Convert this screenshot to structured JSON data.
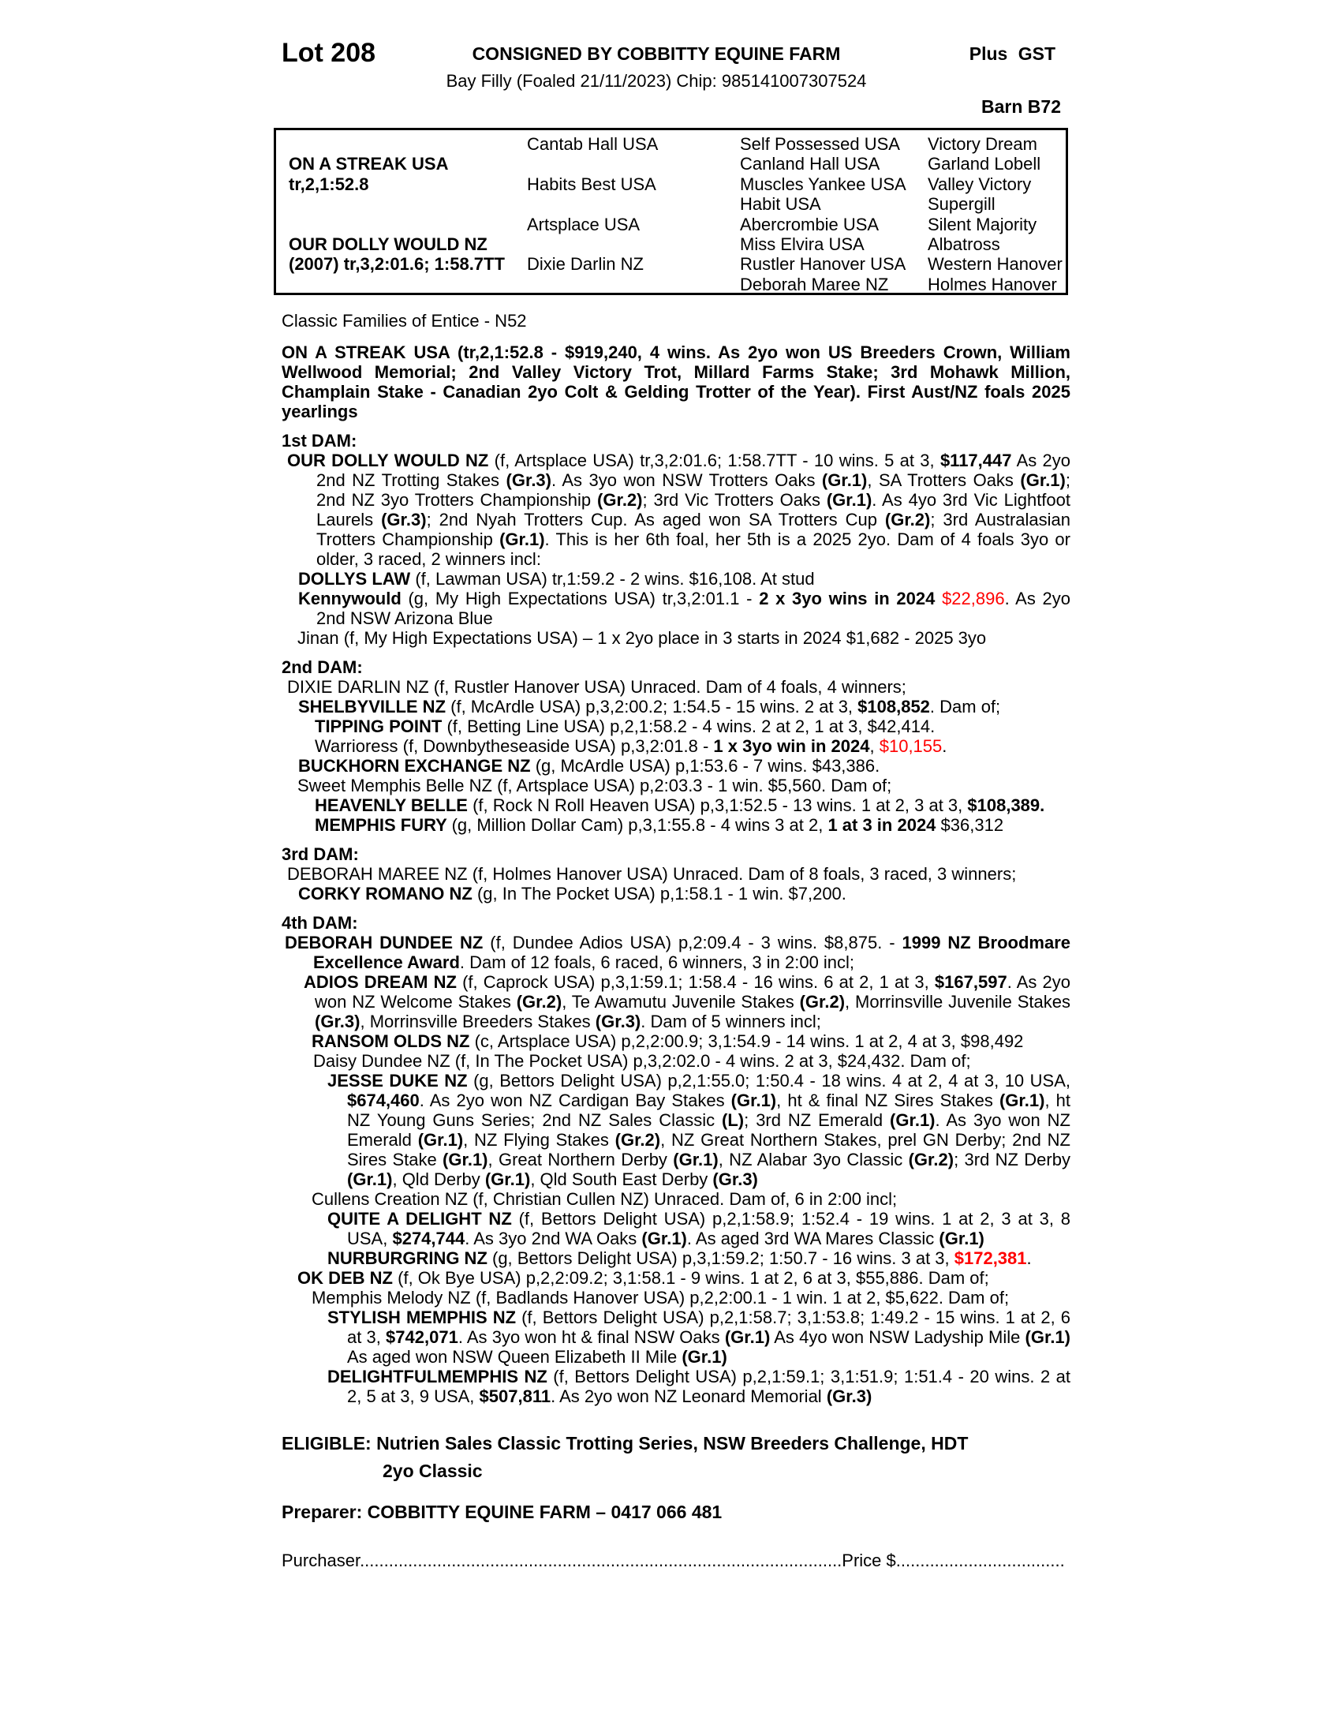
{
  "colors": {
    "accent_red": "#ff0000",
    "text": "#000000",
    "paper": "#ffffff"
  },
  "header": {
    "lot": "Lot 208",
    "consignor": "CONSIGNED BY COBBITTY EQUINE FARM",
    "gst": "Plus GST",
    "description": "Bay Filly (Foaled 21/11/2023) Chip: 985141007307524",
    "barn": "Barn B72"
  },
  "pedigree": {
    "sire": {
      "name": "ON A STREAK USA",
      "record": "tr,2,1:52.8"
    },
    "dam": {
      "name": "OUR DOLLY WOULD NZ",
      "record": "(2007) tr,3,2:01.6; 1:58.7TT"
    },
    "gen2": [
      "Cantab Hall USA",
      "Habits Best USA",
      "Artsplace USA",
      "Dixie Darlin NZ"
    ],
    "gen3": [
      "Self Possessed USA",
      "Canland Hall USA",
      "Muscles Yankee USA",
      "Habit USA",
      "Abercrombie USA",
      "Miss Elvira USA",
      "Rustler Hanover USA",
      "Deborah Maree NZ"
    ],
    "gen4": [
      "Victory Dream",
      "Garland Lobell",
      "Valley Victory",
      "Supergill",
      "Silent Majority",
      "Albatross",
      "Western Hanover",
      "Holmes Hanover"
    ]
  },
  "blocks": [
    {
      "n": "family-line",
      "runs": [
        {
          "t": "Classic Families of Entice - N52"
        }
      ]
    },
    {
      "n": "sire-summary",
      "cls": "mt15 j",
      "runs": [
        {
          "t": "ON A STREAK USA (tr,2,1:52.8 - $919,240, 4 wins. As 2yo won US Breeders Crown, William Wellwood Memorial; 2nd Valley Victory Trot, Millard Farms Stake; 3rd Mohawk Million, Champlain Stake - Canadian 2yo Colt & Gelding Trotter of the Year). First Aust/NZ foals 2025 yearlings",
          "b": true
        }
      ]
    },
    {
      "n": "heading-1st-dam",
      "cls": "sec",
      "runs": [
        {
          "t": "1st DAM:",
          "b": true
        }
      ]
    },
    {
      "n": "para-our-dolly-would",
      "cls": "j",
      "ind": 7,
      "cont": 44,
      "runs": [
        {
          "t": "OUR DOLLY WOULD NZ ",
          "b": true
        },
        {
          "t": "(f, Artsplace USA) tr,3,2:01.6; 1:58.7TT - 10 wins. 5 at 3, "
        },
        {
          "t": "$117,447",
          "b": true
        },
        {
          "t": " As 2yo 2nd NZ Trotting Stakes "
        },
        {
          "t": "(Gr.3)",
          "b": true
        },
        {
          "t": ". As 3yo won NSW Trotters Oaks "
        },
        {
          "t": "(Gr.1)",
          "b": true
        },
        {
          "t": ", SA Trotters Oaks "
        },
        {
          "t": "(Gr.1)",
          "b": true
        },
        {
          "t": "; 2nd NZ 3yo Trotters Championship "
        },
        {
          "t": "(Gr.2)",
          "b": true
        },
        {
          "t": "; 3rd Vic Trotters Oaks "
        },
        {
          "t": "(Gr.1)",
          "b": true
        },
        {
          "t": ". As 4yo 3rd Vic Lightfoot Laurels "
        },
        {
          "t": "(Gr.3)",
          "b": true
        },
        {
          "t": "; 2nd Nyah Trotters Cup. As aged won SA Trotters Cup "
        },
        {
          "t": "(Gr.2)",
          "b": true
        },
        {
          "t": "; 3rd Australasian Trotters Championship "
        },
        {
          "t": "(Gr.1)",
          "b": true
        },
        {
          "t": ". This is her 6th foal, her 5th is a 2025 2yo. Dam of 4 foals 3yo or older, 3 raced, 2 winners incl:"
        }
      ]
    },
    {
      "n": "para-dollys-law",
      "ind": 21,
      "cont": 44,
      "runs": [
        {
          "t": "DOLLYS LAW ",
          "b": true
        },
        {
          "t": "(f, Lawman USA) tr,1:59.2 - 2 wins. $16,108. At stud"
        }
      ]
    },
    {
      "n": "para-kennywould",
      "cls": "j",
      "ind": 21,
      "cont": 44,
      "runs": [
        {
          "t": "Kennywould ",
          "b": true
        },
        {
          "t": "(g, My High Expectations USA) tr,3,2:01.1 - "
        },
        {
          "t": "2 x 3yo wins in 2024 ",
          "b": true
        },
        {
          "t": "$22,896",
          "r": true
        },
        {
          "t": ". As 2yo 2nd NSW Arizona Blue"
        }
      ]
    },
    {
      "n": "para-jinan",
      "ind": 20,
      "cont": 44,
      "runs": [
        {
          "t": "Jinan (f, My High Expectations USA) – 1 x 2yo place in 3 starts in 2024 $1,682 - 2025 3yo"
        }
      ]
    },
    {
      "n": "heading-2nd-dam",
      "cls": "sec",
      "runs": [
        {
          "t": "2nd DAM:",
          "b": true
        }
      ]
    },
    {
      "n": "para-dixie-darlin",
      "ind": 7,
      "cont": 44,
      "runs": [
        {
          "t": "DIXIE DARLIN NZ (f, Rustler Hanover USA) Unraced. Dam of 4 foals, 4 winners;"
        }
      ]
    },
    {
      "n": "para-shelbyville",
      "ind": 21,
      "cont": 44,
      "runs": [
        {
          "t": "SHELBYVILLE NZ ",
          "b": true
        },
        {
          "t": "(f, McArdle USA) p,3,2:00.2; 1:54.5 - 15 wins. 2 at 3, "
        },
        {
          "t": "$108,852",
          "b": true
        },
        {
          "t": ". Dam of;"
        }
      ]
    },
    {
      "n": "para-tipping-point",
      "ind": 42,
      "cont": 60,
      "runs": [
        {
          "t": "TIPPING POINT ",
          "b": true
        },
        {
          "t": "(f, Betting Line USA) p,2,1:58.2 - 4 wins. 2 at 2, 1 at 3, $42,414."
        }
      ]
    },
    {
      "n": "para-warrioress",
      "ind": 42,
      "cont": 60,
      "runs": [
        {
          "t": "Warrioress (f, Downbytheseaside USA) p,3,2:01.8 - "
        },
        {
          "t": "1 x 3yo win in 2024",
          "b": true
        },
        {
          "t": ", "
        },
        {
          "t": "$10,155",
          "r": true
        },
        {
          "t": "."
        }
      ]
    },
    {
      "n": "para-buckhorn-exchange",
      "ind": 21,
      "cont": 44,
      "runs": [
        {
          "t": "BUCKHORN EXCHANGE NZ ",
          "b": true
        },
        {
          "t": "(g, McArdle USA) p,1:53.6 - 7 wins. $43,386."
        }
      ]
    },
    {
      "n": "para-sweet-memphis-belle",
      "ind": 20,
      "cont": 44,
      "runs": [
        {
          "t": "Sweet Memphis Belle NZ (f, Artsplace USA) p,2:03.3 - 1 win. $5,560. Dam of;"
        }
      ]
    },
    {
      "n": "para-heavenly-belle",
      "ind": 42,
      "cont": 60,
      "runs": [
        {
          "t": "HEAVENLY BELLE ",
          "b": true
        },
        {
          "t": "(f, Rock N Roll Heaven USA) p,3,1:52.5 - 13 wins. 1 at 2, 3 at 3, "
        },
        {
          "t": "$108,389.",
          "b": true
        }
      ]
    },
    {
      "n": "para-memphis-fury",
      "ind": 42,
      "cont": 60,
      "runs": [
        {
          "t": "MEMPHIS FURY ",
          "b": true
        },
        {
          "t": "(g, Million Dollar Cam) p,3,1:55.8 - 4 wins 3 at 2, "
        },
        {
          "t": "1 at 3 in 2024",
          "b": true
        },
        {
          "t": " $36,312"
        }
      ]
    },
    {
      "n": "heading-3rd-dam",
      "cls": "sec",
      "runs": [
        {
          "t": "3rd DAM:",
          "b": true
        }
      ]
    },
    {
      "n": "para-deborah-maree",
      "ind": 7,
      "cont": 44,
      "runs": [
        {
          "t": "DEBORAH MAREE NZ (f, Holmes Hanover USA) Unraced. Dam of 8 foals, 3 raced, 3 winners;"
        }
      ]
    },
    {
      "n": "para-corky-romano",
      "ind": 21,
      "cont": 44,
      "runs": [
        {
          "t": "CORKY ROMANO NZ ",
          "b": true
        },
        {
          "t": "(g, In The Pocket USA) p,1:58.1 - 1 win. $7,200."
        }
      ]
    },
    {
      "n": "heading-4th-dam",
      "cls": "sec",
      "runs": [
        {
          "t": "4th DAM:",
          "b": true
        }
      ]
    },
    {
      "n": "para-deborah-dundee",
      "cls": "j",
      "ind": 4,
      "cont": 40,
      "runs": [
        {
          "t": "DEBORAH DUNDEE NZ ",
          "b": true
        },
        {
          "t": "(f, Dundee Adios USA) p,2:09.4 - 3 wins. $8,875. - "
        },
        {
          "t": "1999 NZ Broodmare Excellence Award",
          "b": true
        },
        {
          "t": ". Dam of 12 foals, 6 raced, 6 winners, 3 in 2:00 incl;"
        }
      ]
    },
    {
      "n": "para-adios-dream",
      "cls": "j",
      "ind": 28,
      "cont": 42,
      "runs": [
        {
          "t": "ADIOS DREAM NZ ",
          "b": true
        },
        {
          "t": "(f, Caprock USA) p,3,1:59.1; 1:58.4 - 16 wins. 6 at 2, 1 at 3, "
        },
        {
          "t": "$167,597",
          "b": true
        },
        {
          "t": ". As 2yo won NZ Welcome Stakes "
        },
        {
          "t": "(Gr.2)",
          "b": true
        },
        {
          "t": ", Te Awamutu Juvenile Stakes "
        },
        {
          "t": "(Gr.2)",
          "b": true
        },
        {
          "t": ", Morrinsville Juvenile Stakes "
        },
        {
          "t": "(Gr.3)",
          "b": true
        },
        {
          "t": ", Morrinsville Breeders Stakes "
        },
        {
          "t": "(Gr.3)",
          "b": true
        },
        {
          "t": ". Dam of 5 winners incl;"
        }
      ]
    },
    {
      "n": "para-ransom-olds",
      "ind": 38,
      "cont": 58,
      "runs": [
        {
          "t": "RANSOM OLDS NZ ",
          "b": true
        },
        {
          "t": "(c, Artsplace USA) p,2,2:00.9; 3,1:54.9 - 14 wins. 1 at 2, 4 at 3, $98,492"
        }
      ]
    },
    {
      "n": "para-daisy-dundee",
      "ind": 40,
      "cont": 58,
      "runs": [
        {
          "t": "Daisy Dundee NZ (f, In The Pocket USA) p,3,2:02.0 - 4 wins. 2 at 3, $24,432. Dam of;"
        }
      ]
    },
    {
      "n": "para-jesse-duke",
      "cls": "j",
      "ind": 58,
      "cont": 83,
      "runs": [
        {
          "t": "JESSE DUKE NZ ",
          "b": true
        },
        {
          "t": "(g, Bettors Delight USA) p,2,1:55.0; 1:50.4 - 18 wins. 4 at 2, 4 at 3, 10 USA, "
        },
        {
          "t": "$674,460",
          "b": true
        },
        {
          "t": ". As 2yo won NZ Cardigan Bay Stakes "
        },
        {
          "t": "(Gr.1)",
          "b": true
        },
        {
          "t": ", ht & final NZ Sires Stakes "
        },
        {
          "t": "(Gr.1)",
          "b": true
        },
        {
          "t": ", ht NZ Young Guns Series; 2nd NZ Sales Classic "
        },
        {
          "t": "(L)",
          "b": true
        },
        {
          "t": "; 3rd NZ Emerald "
        },
        {
          "t": "(Gr.1)",
          "b": true
        },
        {
          "t": ". As 3yo won NZ Emerald "
        },
        {
          "t": "(Gr.1)",
          "b": true
        },
        {
          "t": ", NZ Flying Stakes "
        },
        {
          "t": "(Gr.2)",
          "b": true
        },
        {
          "t": ", NZ Great Northern Stakes, prel GN Derby; 2nd NZ Sires Stake "
        },
        {
          "t": "(Gr.1)",
          "b": true
        },
        {
          "t": ", Great Northern Derby "
        },
        {
          "t": "(Gr.1)",
          "b": true
        },
        {
          "t": ", NZ Alabar 3yo Classic "
        },
        {
          "t": "(Gr.2)",
          "b": true
        },
        {
          "t": "; 3rd NZ Derby "
        },
        {
          "t": "(Gr.1)",
          "b": true
        },
        {
          "t": ", Qld Derby "
        },
        {
          "t": "(Gr.1)",
          "b": true
        },
        {
          "t": ", Qld South East Derby "
        },
        {
          "t": "(Gr.3)",
          "b": true
        }
      ]
    },
    {
      "n": "para-cullens-creation",
      "ind": 38,
      "cont": 58,
      "runs": [
        {
          "t": "Cullens Creation NZ (f, Christian Cullen NZ) Unraced. Dam of, 6 in 2:00 incl;"
        }
      ]
    },
    {
      "n": "para-quite-a-delight",
      "cls": "j",
      "ind": 58,
      "cont": 83,
      "runs": [
        {
          "t": "QUITE A DELIGHT NZ ",
          "b": true
        },
        {
          "t": "(f, Bettors Delight USA) p,2,1:58.9; 1:52.4 - 19 wins. 1 at 2, 3 at 3, 8 USA, "
        },
        {
          "t": "$274,744",
          "b": true
        },
        {
          "t": ". As 3yo 2nd WA Oaks "
        },
        {
          "t": "(Gr.1)",
          "b": true
        },
        {
          "t": ". As aged 3rd WA Mares Classic "
        },
        {
          "t": "(Gr.1)",
          "b": true
        }
      ]
    },
    {
      "n": "para-nurburgring",
      "ind": 58,
      "cont": 83,
      "runs": [
        {
          "t": "NURBURGRING NZ ",
          "b": true
        },
        {
          "t": "(g, Bettors Delight USA) p,3,1:59.2; 1:50.7 - 16 wins. 3 at 3, "
        },
        {
          "t": "$172,381",
          "b": true,
          "r": true
        },
        {
          "t": "."
        }
      ]
    },
    {
      "n": "para-ok-deb",
      "ind": 20,
      "cont": 44,
      "runs": [
        {
          "t": "OK DEB NZ ",
          "b": true
        },
        {
          "t": "(f, Ok Bye USA) p,2,2:09.2; 3,1:58.1 - 9 wins. 1 at 2, 6 at 3, $55,886. Dam of;"
        }
      ]
    },
    {
      "n": "para-memphis-melody",
      "ind": 38,
      "cont": 58,
      "runs": [
        {
          "t": "Memphis Melody NZ (f, Badlands Hanover USA) p,2,2:00.1 - 1 win. 1 at 2, $5,622. Dam of;"
        }
      ]
    },
    {
      "n": "para-stylish-memphis",
      "cls": "j",
      "ind": 58,
      "cont": 83,
      "runs": [
        {
          "t": "STYLISH MEMPHIS NZ ",
          "b": true
        },
        {
          "t": "(f, Bettors Delight USA) p,2,1:58.7; 3,1:53.8; 1:49.2 - 15 wins. 1 at 2, 6 at 3, "
        },
        {
          "t": "$742,071",
          "b": true
        },
        {
          "t": ". As 3yo won ht & final NSW Oaks "
        },
        {
          "t": "(Gr.1)",
          "b": true
        },
        {
          "t": " As 4yo won NSW Ladyship Mile "
        },
        {
          "t": "(Gr.1)",
          "b": true
        },
        {
          "t": " As aged won NSW Queen Elizabeth II Mile "
        },
        {
          "t": "(Gr.1)",
          "b": true
        }
      ]
    },
    {
      "n": "para-delightfulmemphis",
      "cls": "j",
      "ind": 58,
      "cont": 83,
      "runs": [
        {
          "t": "DELIGHTFULMEMPHIS NZ ",
          "b": true
        },
        {
          "t": "(f, Bettors Delight USA) p,2,1:59.1; 3,1:51.9; 1:51.4 - 20 wins. 2 at 2, 5 at 3, 9 USA, "
        },
        {
          "t": "$507,811",
          "b": true
        },
        {
          "t": ". As 2yo won NZ Leonard Memorial "
        },
        {
          "t": "(Gr.3)",
          "b": true
        }
      ]
    },
    {
      "n": "eligible-line",
      "cls": "eligible",
      "ind": 0,
      "cont": 128,
      "runs": [
        {
          "t": "ELIGIBLE: Nutrien Sales Classic Trotting Series, NSW Breeders Challenge, HDT",
          "b": true
        },
        {
          "br": true
        },
        {
          "t": "2yo Classic",
          "b": true
        }
      ]
    },
    {
      "n": "preparer-line",
      "cls": "preparer",
      "runs": [
        {
          "t": "Preparer: COBBITTY EQUINE FARM – 0417 066 481",
          "b": true
        }
      ]
    },
    {
      "n": "purchaser-line",
      "cls": "purch",
      "runs": [
        {
          "t": "Purchaser"
        },
        {
          "t": "...................................................................................................."
        },
        {
          "t": "Price $"
        },
        {
          "t": "..................................."
        }
      ]
    }
  ]
}
